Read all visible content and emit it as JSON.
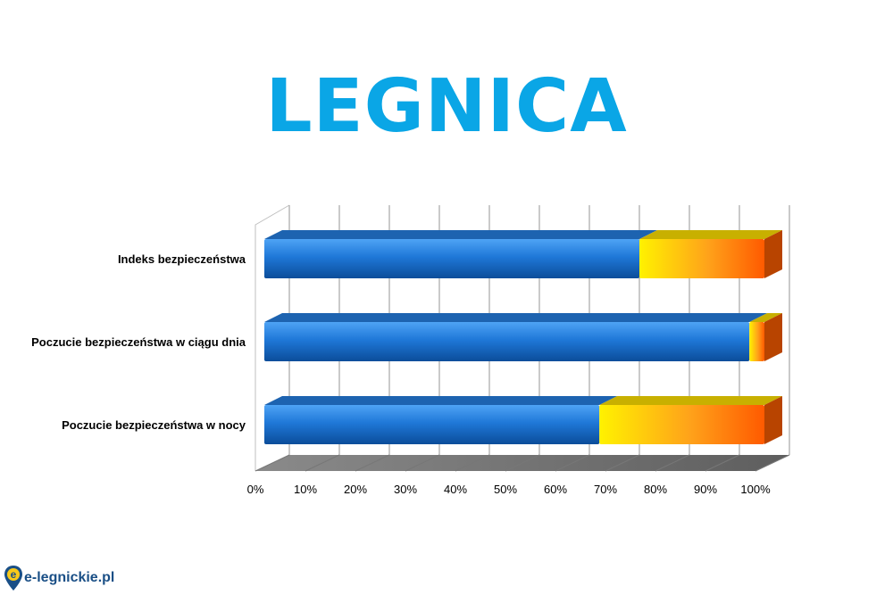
{
  "title": "LEGNICA",
  "logo": {
    "text": "e-legnickie.pl"
  },
  "chart_data": {
    "type": "bar",
    "orientation": "horizontal",
    "stacked": true,
    "categories": [
      "Indeks bezpieczeństwa",
      "Poczucie bezpieczeństwa w ciągu dnia",
      "Poczucie bezpieczeństwa w nocy"
    ],
    "series": [
      {
        "values": [
          75,
          97,
          67
        ],
        "color": "#1f78d8"
      },
      {
        "values": [
          25,
          3,
          33
        ],
        "color": "#ff9a1a"
      }
    ],
    "xlim": [
      0,
      100
    ],
    "xticks": [
      "0%",
      "10%",
      "20%",
      "30%",
      "40%",
      "50%",
      "60%",
      "70%",
      "80%",
      "90%",
      "100%"
    ],
    "grid": true,
    "legend": "none",
    "style": "3d"
  }
}
